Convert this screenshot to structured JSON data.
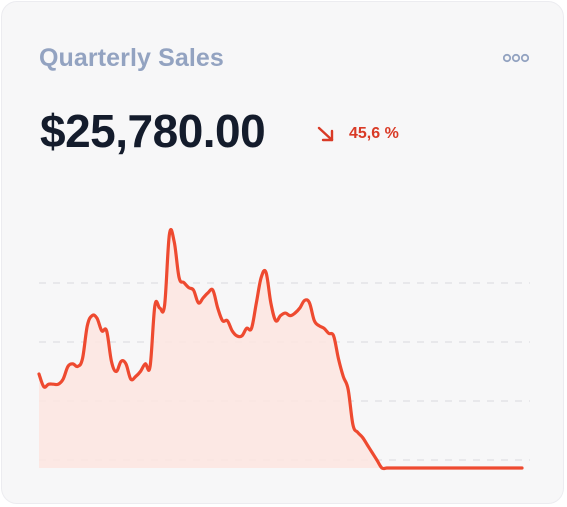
{
  "card": {
    "title": "Quarterly Sales",
    "value": "$25,780.00",
    "change": "45,6 %",
    "change_direction": "down",
    "change_icon": "arrow-down-right-icon",
    "menu_icon": "more-dots-icon"
  },
  "colors": {
    "line": "#ee4a30",
    "fill": "#fde5e1",
    "change": "#d93a26",
    "title": "#93a3c1",
    "value": "#141c2c",
    "gridline": "#dedfe3"
  },
  "chart_data": {
    "type": "area",
    "title": "",
    "xlabel": "",
    "ylabel": "",
    "ylim": [
      0,
      100
    ],
    "grid": true,
    "legend": "none",
    "x": [
      0,
      1,
      2,
      3,
      4,
      5,
      6,
      7,
      8,
      9,
      10,
      11,
      12,
      13,
      14,
      15,
      16,
      17,
      18,
      19,
      20,
      21,
      22,
      23,
      24,
      25,
      26,
      27,
      28,
      29,
      30,
      31,
      32,
      33,
      34,
      35,
      36,
      37,
      38,
      39,
      40,
      41,
      42,
      43,
      44,
      45,
      46,
      47,
      48,
      49,
      50,
      51,
      52,
      53,
      54,
      55,
      56,
      57,
      58,
      59,
      60,
      61,
      62,
      63,
      64,
      65,
      66,
      67,
      68,
      69,
      70,
      71,
      72,
      73,
      74,
      75,
      76,
      77,
      78,
      79,
      80,
      81,
      82,
      83,
      84,
      85,
      86,
      87,
      88,
      89,
      90,
      91,
      92,
      93,
      94,
      95,
      96,
      97,
      98,
      99,
      100
    ],
    "series": [
      {
        "values": [
          37,
          32,
          33,
          33,
          33,
          35,
          40,
          41,
          40,
          43,
          56,
          60,
          59,
          54,
          54,
          42,
          38,
          42,
          41,
          35,
          36,
          38,
          41,
          40,
          64,
          63,
          64,
          92,
          89,
          75,
          73,
          71,
          70,
          65,
          67,
          69,
          70,
          63,
          58,
          58,
          54,
          52,
          52,
          55,
          55,
          65,
          75,
          77,
          65,
          58,
          60,
          61,
          60,
          61,
          63,
          66,
          65,
          58,
          56,
          55,
          53,
          52,
          43,
          36,
          31,
          17,
          14,
          12,
          9,
          6,
          3,
          0,
          0,
          0,
          0,
          0,
          0,
          0,
          0,
          0,
          0,
          0,
          0,
          0,
          0,
          0,
          0,
          0,
          0,
          0,
          0,
          0,
          0,
          0,
          0,
          0,
          0,
          0,
          0,
          0,
          0
        ]
      }
    ]
  }
}
